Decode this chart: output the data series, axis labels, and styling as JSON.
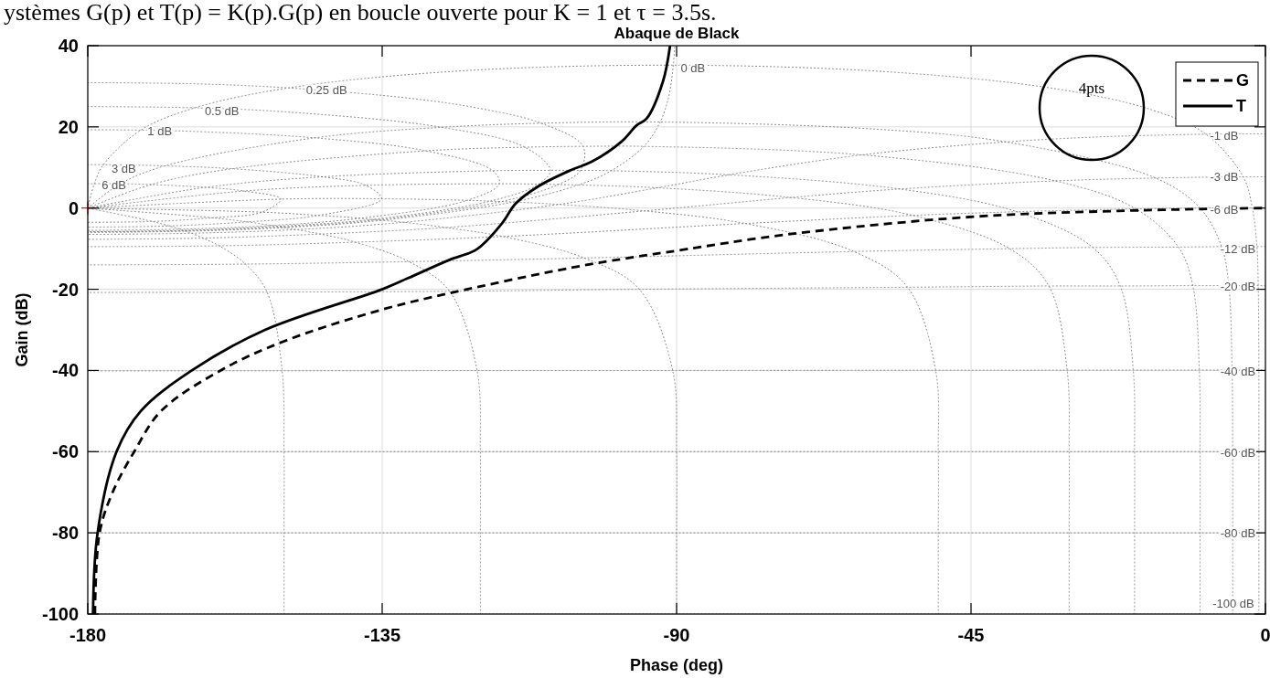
{
  "chart_data": {
    "type": "line",
    "title": "Abaque de Black",
    "xlabel": "Phase (deg)",
    "ylabel": "Gain (dB)",
    "xlim": [
      -180,
      0
    ],
    "ylim": [
      -100,
      40
    ],
    "xticks": [
      -180,
      -135,
      -90,
      -45,
      0
    ],
    "yticks": [
      -100,
      -80,
      -60,
      -40,
      -20,
      0,
      20,
      40
    ],
    "grid": true,
    "legend": "top right",
    "annotations": [
      "ystèmes G(p) et T(p) = K(p).G(p) en boucle ouverte pour K = 1 et τ = 3.5s.",
      "4pts",
      {
        "text": "0 dB",
        "x": -87.5,
        "y": 34.6
      },
      {
        "text": "0.25 dB",
        "x": -143.5,
        "y": 29
      },
      {
        "text": "0.5 dB",
        "x": -159.5,
        "y": 24
      },
      {
        "text": "1 dB",
        "x": -169,
        "y": 19
      },
      {
        "text": "3 dB",
        "x": -174.5,
        "y": 9.8
      },
      {
        "text": "6 dB",
        "x": -176,
        "y": 5.7
      },
      {
        "text": "-1 dB",
        "x": -6.3,
        "y": 17.9
      },
      {
        "text": "-3 dB",
        "x": -6.3,
        "y": 7.6
      },
      {
        "text": "-6 dB",
        "x": -6.3,
        "y": -0.4
      },
      {
        "text": "-12 dB",
        "x": -4.2,
        "y": -10.1
      },
      {
        "text": "-20 dB",
        "x": -4.2,
        "y": -19.4
      },
      {
        "text": "-40 dB",
        "x": -4.2,
        "y": -40.2
      },
      {
        "text": "-60 dB",
        "x": -4.2,
        "y": -60.3
      },
      {
        "text": "-80 dB",
        "x": -4.2,
        "y": -80
      },
      {
        "text": "-100 dB",
        "x": -4.9,
        "y": -97.4
      }
    ],
    "series": [
      {
        "color": "#808080",
        "line_style": "dotted",
        "x": [
          0,
          -1.1,
          -5.6,
          -11.1,
          -22.2,
          -33.1,
          -54.7,
          -95.7,
          -124.7,
          -152.6,
          -180
        ],
        "values": [
          -19.1,
          -19.1,
          -19.1,
          -19.1,
          -19.2,
          -19.2,
          -19.5,
          -20,
          -20.5,
          -20.7,
          -20.8
        ]
      },
      {
        "color": "#808080",
        "line_style": "dotted",
        "x": [
          0,
          -1.3,
          -6.7,
          -13.3,
          -26.4,
          -39.1,
          -62.9,
          -104.1,
          -130.9,
          -155.9,
          -180
        ],
        "values": [
          -9.5,
          -9.5,
          -9.5,
          -9.6,
          -9.7,
          -10,
          -10.7,
          -12.3,
          -13.2,
          -13.8,
          -14
        ]
      },
      {
        "color": "#808080",
        "line_style": "dotted",
        "x": [
          0,
          -2,
          -10,
          -19.8,
          -38,
          -53.9,
          -79.5,
          -116.6,
          -139.1,
          -159.9,
          -180
        ],
        "values": [
          0,
          0,
          0,
          -0.2,
          -0.9,
          -1.8,
          -3.8,
          -7,
          -8.4,
          -9.3,
          -9.5
        ]
      },
      {
        "color": "#808080",
        "line_style": "dotted",
        "x": [
          0,
          -3.4,
          -16.8,
          -32.1,
          -55.9,
          -72.5,
          -94.9,
          -125.3,
          -144.4,
          -162.4,
          -180
        ],
        "values": [
          7.7,
          7.7,
          7.4,
          6.7,
          4.7,
          2.6,
          -0.7,
          -4.8,
          -6.4,
          -7.4,
          -7.7
        ]
      },
      {
        "color": "#808080",
        "line_style": "dotted",
        "x": [
          0,
          -9.1,
          -17.9,
          -26,
          -39.7,
          -61.7,
          -82,
          -92.9,
          -108,
          -131.7,
          -148.1,
          -164.1,
          -180
        ],
        "values": [
          18.3,
          18.2,
          17.9,
          17.5,
          16.3,
          13.1,
          8.2,
          5,
          0.9,
          -3.5,
          -5.3,
          -6.2,
          -6.5
        ]
      },
      {
        "color": "#808080",
        "line_style": "dotted",
        "x": [
          -90.3,
          -90.5,
          -91,
          -91.5,
          -92.5,
          -95,
          -100,
          -105,
          -115,
          -135,
          -150,
          -165,
          -180
        ],
        "values": [
          39.6,
          35.2,
          29.1,
          25.6,
          21.2,
          15.2,
          9.2,
          5.7,
          1.5,
          -3,
          -4.8,
          -5.7,
          -6
        ]
      },
      {
        "color": "#808080",
        "line_style": "dotted",
        "x": [
          -180,
          -163.4,
          -149.3,
          -130.5,
          -120.3,
          -110.7,
          -104.3,
          -104.7,
          -108.1,
          -116.8,
          -135.8,
          -150.5,
          -165.2,
          -180
        ],
        "values": [
          30.9,
          30.6,
          29.6,
          27,
          24.6,
          20.9,
          15.2,
          9.3,
          5.8,
          1.6,
          -2.9,
          -4.7,
          -5.6,
          -5.9
        ]
      },
      {
        "color": "#808080",
        "line_style": "dotted",
        "x": [
          -180,
          -163.6,
          -149.8,
          -125.9,
          -113.2,
          -109.3,
          -111.1,
          -118.5,
          -136.6,
          -151,
          -165.4,
          -180
        ],
        "values": [
          25,
          24.7,
          23.7,
          19.9,
          15,
          9.3,
          5.9,
          1.7,
          -2.8,
          -4.5,
          -5.5,
          -5.8
        ]
      },
      {
        "color": "#808080",
        "line_style": "dotted",
        "x": [
          -180,
          -171.9,
          -164.1,
          -145.3,
          -128.3,
          -118.1,
          -117.1,
          -122,
          -138.3,
          -151.9,
          -165.9,
          -180
        ],
        "values": [
          19.3,
          19.2,
          18.9,
          17.3,
          14.1,
          9.2,
          6,
          1.9,
          -2.5,
          -4.3,
          -5.2,
          -5.5
        ]
      },
      {
        "color": "#808080",
        "line_style": "dotted",
        "x": [
          -180,
          -177.6,
          -168.2,
          -157.9,
          -144.1,
          -137.5,
          -135.1,
          -144.7,
          -155.6,
          -167.6,
          -180
        ],
        "values": [
          10.7,
          10.7,
          10.4,
          9.7,
          7.7,
          5.6,
          2.3,
          -1.8,
          -3.4,
          -4.4,
          -4.7
        ]
      },
      {
        "color": "#808080",
        "line_style": "dotted",
        "x": [
          -180,
          -179,
          -175,
          -170.3,
          -162,
          -156.1,
          -150.5,
          -153.4,
          -160.9,
          -170.1,
          -180
        ],
        "values": [
          6,
          6,
          6,
          5.8,
          5.1,
          4.2,
          2.2,
          -1,
          -2.4,
          -3.3,
          -3.5
        ]
      },
      {
        "color": "#808080",
        "line_style": "dotted",
        "x": [
          0,
          -90,
          -180
        ],
        "values": [
          -39.9,
          -40,
          -40.1
        ]
      },
      {
        "color": "#808080",
        "line_style": "dotted",
        "x": [
          0,
          -180
        ],
        "values": [
          -60,
          -60
        ]
      },
      {
        "color": "#808080",
        "line_style": "dotted",
        "x": [
          0,
          -180
        ],
        "values": [
          -80,
          -80
        ]
      },
      {
        "color": "#808080",
        "line_style": "dotted",
        "x": [
          0,
          -180
        ],
        "values": [
          -100,
          -100
        ]
      },
      {
        "color": "#808080",
        "line_style": "dotted",
        "x": [
          -1,
          -1,
          -1,
          -1,
          -1.1,
          -1.3,
          -2,
          -3.4,
          -9.1,
          -17.4,
          -31.7,
          -57.1,
          -90.5,
          -123.9,
          -149.3,
          -163.6,
          -171.9,
          -177.6,
          -179,
          -180
        ],
        "values": [
          -100,
          -80,
          -60,
          -40,
          -19.1,
          -9.5,
          0,
          7.7,
          18.2,
          24.2,
          29.3,
          33.5,
          35.2,
          33.7,
          29.6,
          24.7,
          19.2,
          10.7,
          6,
          0
        ]
      },
      {
        "color": "#808080",
        "line_style": "dotted",
        "x": [
          -5,
          -5,
          -5,
          -5.1,
          -5.6,
          -6.7,
          -10,
          -16.8,
          -39.7,
          -59.1,
          -92.5,
          -110.7,
          -125.9,
          -145.3,
          -168.2,
          -175,
          -180
        ],
        "values": [
          -100,
          -80,
          -60,
          -40,
          -19.1,
          -9.5,
          0,
          7.4,
          16.3,
          19.4,
          21.2,
          20.9,
          19.9,
          17.3,
          10.4,
          6,
          0
        ]
      },
      {
        "color": "#808080",
        "line_style": "dotted",
        "x": [
          -10,
          -10,
          -10,
          -10.1,
          -11.1,
          -13.3,
          -19.8,
          -32.1,
          -61.7,
          -95,
          -104.3,
          -113.2,
          -128.3,
          -157.9,
          -170.3,
          -180
        ],
        "values": [
          -100,
          -80,
          -60,
          -40,
          -19.1,
          -9.6,
          -0.2,
          6.7,
          13.1,
          15.2,
          15.2,
          15,
          14.1,
          9.7,
          5.8,
          0
        ]
      },
      {
        "color": "#808080",
        "line_style": "dotted",
        "x": [
          -20,
          -20,
          -20,
          -20.2,
          -22.2,
          -26.4,
          -38,
          -55.9,
          -82,
          -100,
          -104.7,
          -109.3,
          -118.1,
          -144.1,
          -162,
          -180
        ],
        "values": [
          -100,
          -80,
          -60,
          -40,
          -19.2,
          -9.7,
          -0.9,
          4.7,
          8.2,
          9.2,
          9.3,
          9.3,
          9.2,
          7.7,
          5.1,
          0
        ]
      },
      {
        "color": "#808080",
        "line_style": "dotted",
        "x": [
          -30,
          -30,
          -30,
          -30.3,
          -33.1,
          -39.1,
          -53.9,
          -72.5,
          -92.9,
          -105,
          -108.1,
          -111.1,
          -117.1,
          -137.5,
          -156.1,
          -180
        ],
        "values": [
          -100,
          -80,
          -60,
          -40,
          -19.2,
          -10,
          -1.8,
          2.6,
          5,
          5.7,
          5.8,
          5.9,
          6,
          5.6,
          4.2,
          0
        ]
      },
      {
        "color": "#808080",
        "line_style": "dotted",
        "x": [
          -50,
          -50,
          -50,
          -50.4,
          -54.7,
          -62.9,
          -79.5,
          -94.9,
          -108,
          -115,
          -116.8,
          -118.5,
          -122,
          -135.1,
          -150.5,
          -180
        ],
        "values": [
          -100,
          -80,
          -60,
          -40,
          -19.5,
          -10.7,
          -3.8,
          -0.7,
          0.9,
          1.5,
          1.6,
          1.7,
          1.9,
          2.3,
          2.2,
          0
        ]
      },
      {
        "color": "#808080",
        "line_style": "dotted",
        "x": [
          -90,
          -90,
          -90,
          -90.6,
          -95.7,
          -104.1,
          -116.6,
          -125.3,
          -131.7,
          -135,
          -135.8,
          -136.6,
          -138.3,
          -144.7,
          -153.4,
          -180
        ],
        "values": [
          -100,
          -80,
          -60,
          -40,
          -20,
          -12.3,
          -7,
          -4.8,
          -3.5,
          -3,
          -2.9,
          -2.8,
          -2.5,
          -1.8,
          -1,
          0
        ]
      },
      {
        "color": "#808080",
        "line_style": "dotted",
        "x": [
          -120,
          -120,
          -120,
          -120.5,
          -124.7,
          -130.9,
          -139.1,
          -144.4,
          -148.1,
          -150,
          -150.5,
          -151,
          -151.9,
          -155.6,
          -160.9,
          -180
        ],
        "values": [
          -100,
          -80,
          -60,
          -40,
          -20.5,
          -13.2,
          -8.4,
          -6.4,
          -5.3,
          -4.8,
          -4.7,
          -4.5,
          -4.3,
          -3.4,
          -2.4,
          0
        ]
      },
      {
        "color": "#808080",
        "line_style": "dotted",
        "x": [
          -150,
          -150,
          -150,
          -150.3,
          -152.6,
          -155.9,
          -159.9,
          -162.4,
          -164.1,
          -165,
          -165.2,
          -165.4,
          -165.9,
          -167.6,
          -170.1,
          -180
        ],
        "values": [
          -100,
          -80,
          -60,
          -40,
          -20.7,
          -13.8,
          -9.3,
          -7.4,
          -6.2,
          -5.7,
          -5.6,
          -5.5,
          -5.2,
          -4.4,
          -3.3,
          0
        ]
      },
      {
        "name": "G",
        "color": "#000000",
        "line_style": "dashed",
        "x": [
          -178.9,
          -178.2,
          -176.2,
          -172.9,
          -168.8,
          -159.7,
          -150,
          -135,
          -124.8,
          -106.1,
          -96.2,
          -90,
          -73.1,
          -45.3,
          -22.5,
          -0.3
        ],
        "values": [
          -100,
          -80,
          -70,
          -60,
          -50,
          -40,
          -32.8,
          -25,
          -21,
          -14.7,
          -12,
          -10.5,
          -6.5,
          -2.2,
          -0.7,
          0
        ]
      },
      {
        "name": "T",
        "color": "#000000",
        "line_style": "solid",
        "x": [
          -179.2,
          -178.5,
          -175.6,
          -171.9,
          -164.1,
          -152.9,
          -135,
          -131.1,
          -124.8,
          -120.5,
          -116.7,
          -114.6,
          -111.1,
          -106.1,
          -103,
          -98.4,
          -96.1,
          -94.6,
          -92.1,
          -91
        ],
        "values": [
          -100,
          -80,
          -60,
          -50,
          -40,
          -30,
          -20,
          -17.3,
          -12.8,
          -10.1,
          -3.8,
          1.1,
          5.4,
          9.4,
          11.4,
          16.4,
          20.4,
          22,
          31.1,
          40
        ]
      },
      {
        "type": "scatter",
        "color": "#ff0000",
        "marker": "cross",
        "x": [
          -180
        ],
        "values": [
          0
        ]
      }
    ]
  }
}
